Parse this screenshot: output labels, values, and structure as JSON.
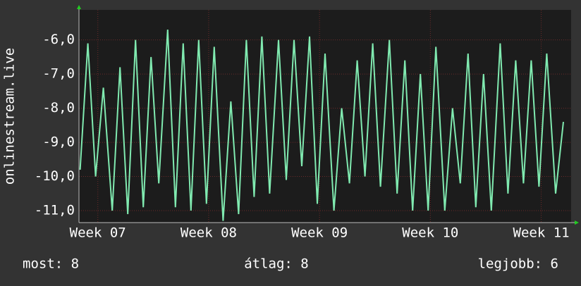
{
  "chart_data": {
    "type": "line",
    "y_label": "onlinestream.live",
    "x": [
      6.84,
      6.91,
      6.98,
      7.05,
      7.13,
      7.2,
      7.27,
      7.34,
      7.41,
      7.48,
      7.55,
      7.63,
      7.7,
      7.77,
      7.84,
      7.91,
      7.98,
      8.05,
      8.13,
      8.2,
      8.27,
      8.34,
      8.41,
      8.48,
      8.55,
      8.63,
      8.7,
      8.77,
      8.84,
      8.91,
      8.98,
      9.05,
      9.13,
      9.2,
      9.27,
      9.34,
      9.41,
      9.48,
      9.55,
      9.63,
      9.7,
      9.77,
      9.84,
      9.91,
      9.98,
      10.05,
      10.13,
      10.2,
      10.27,
      10.34,
      10.41,
      10.48,
      10.55,
      10.63,
      10.7,
      10.77,
      10.84,
      10.91,
      10.98,
      11.05,
      11.13,
      11.2
    ],
    "series": [
      {
        "color": "#80eab0",
        "values": [
          -9.8,
          -6.1,
          -10.0,
          -7.4,
          -11.0,
          -6.8,
          -11.1,
          -6.0,
          -10.9,
          -6.5,
          -10.2,
          -5.7,
          -10.9,
          -6.1,
          -11.0,
          -6.0,
          -10.8,
          -6.2,
          -11.3,
          -7.8,
          -11.1,
          -6.0,
          -10.6,
          -5.9,
          -10.5,
          -6.0,
          -10.1,
          -6.0,
          -9.7,
          -5.9,
          -10.8,
          -6.4,
          -11.0,
          -8.0,
          -10.2,
          -6.6,
          -10.0,
          -6.1,
          -10.3,
          -6.0,
          -10.5,
          -6.6,
          -11.0,
          -7.0,
          -11.0,
          -6.2,
          -11.0,
          -8.0,
          -10.2,
          -6.4,
          -10.9,
          -7.0,
          -11.0,
          -6.1,
          -10.5,
          -6.6,
          -10.2,
          -6.6,
          -10.3,
          -6.4,
          -10.5,
          -8.4
        ]
      }
    ],
    "xlim": [
      6.83,
      11.27
    ],
    "xticks": [
      {
        "value": 7,
        "label": "Week 07"
      },
      {
        "value": 8,
        "label": "Week 08"
      },
      {
        "value": 9,
        "label": "Week 09"
      },
      {
        "value": 10,
        "label": "Week 10"
      },
      {
        "value": 11,
        "label": "Week 11"
      }
    ],
    "ylim": [
      -11.35,
      -5.12
    ],
    "yticks": [
      {
        "value": -6,
        "label": "-6,0"
      },
      {
        "value": -7,
        "label": "-7,0"
      },
      {
        "value": -8,
        "label": "-8,0"
      },
      {
        "value": -9,
        "label": "-9,0"
      },
      {
        "value": -10,
        "label": "-10,0"
      },
      {
        "value": -11,
        "label": "-11,0"
      }
    ],
    "grid": true,
    "stats": [
      "most: 8",
      "átlag: 8",
      "legjobb: 6"
    ]
  }
}
